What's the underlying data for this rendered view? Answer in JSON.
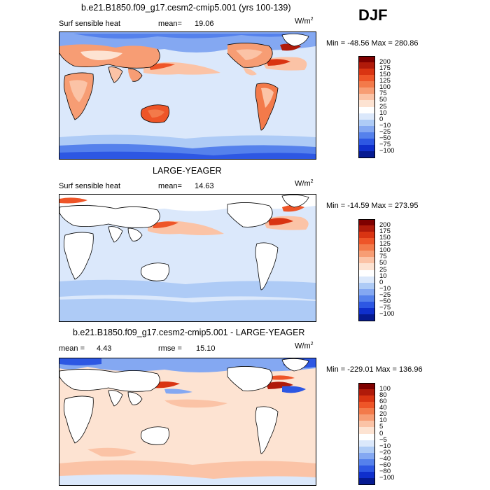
{
  "season": "DJF",
  "panels": [
    {
      "title": "b.e21.B1850.f09_g17.cesm2-cmip5.001 (yrs 100-139)",
      "variable": "Surf sensible heat",
      "stat1_label": "mean=",
      "stat1_value": "19.06",
      "stat2_label": "",
      "stat2_value": "",
      "unit_base": "W/m",
      "unit_exp": "2",
      "minmax": "Min = -48.56 Max = 280.86",
      "colorbar": {
        "labels": [
          "200",
          "175",
          "150",
          "125",
          "100",
          "75",
          "50",
          "25",
          "10",
          "0",
          "-10",
          "-25",
          "-50",
          "-75",
          "-100"
        ],
        "colors": [
          "#7f0000",
          "#b01a0a",
          "#d93412",
          "#ee5528",
          "#f37a4a",
          "#f79d74",
          "#fbc3a6",
          "#fde3d2",
          "#ffffff",
          "#dbe8fb",
          "#aecbf6",
          "#84a8f2",
          "#5581ec",
          "#2d57e3",
          "#0f2fcc",
          "#061a91"
        ]
      }
    },
    {
      "title": "LARGE-YEAGER",
      "variable": "Surf sensible heat",
      "stat1_label": "mean=",
      "stat1_value": "14.63",
      "stat2_label": "",
      "stat2_value": "",
      "unit_base": "W/m",
      "unit_exp": "2",
      "minmax": "Min = -14.59 Max = 273.95",
      "colorbar": {
        "labels": [
          "200",
          "175",
          "150",
          "125",
          "100",
          "75",
          "50",
          "25",
          "10",
          "0",
          "-10",
          "-25",
          "-50",
          "-75",
          "-100"
        ],
        "colors": [
          "#7f0000",
          "#b01a0a",
          "#d93412",
          "#ee5528",
          "#f37a4a",
          "#f79d74",
          "#fbc3a6",
          "#fde3d2",
          "#ffffff",
          "#dbe8fb",
          "#aecbf6",
          "#84a8f2",
          "#5581ec",
          "#2d57e3",
          "#0f2fcc",
          "#061a91"
        ]
      }
    },
    {
      "title": "b.e21.B1850.f09_g17.cesm2-cmip5.001 - LARGE-YEAGER",
      "variable": "",
      "stat1_label": "mean =",
      "stat1_value": "4.43",
      "stat2_label": "rmse =",
      "stat2_value": "15.10",
      "unit_base": "W/m",
      "unit_exp": "2",
      "minmax": "Min = -229.01 Max = 136.96",
      "colorbar": {
        "labels": [
          "100",
          "80",
          "60",
          "40",
          "20",
          "10",
          "5",
          "0",
          "-5",
          "-10",
          "-20",
          "-40",
          "-60",
          "-80",
          "-100"
        ],
        "colors": [
          "#7f0000",
          "#b01a0a",
          "#d93412",
          "#ee5528",
          "#f37a4a",
          "#f79d74",
          "#fbc3a6",
          "#fde3d2",
          "#ffffff",
          "#dbe8fb",
          "#aecbf6",
          "#84a8f2",
          "#5581ec",
          "#2d57e3",
          "#0f2fcc",
          "#061a91"
        ]
      }
    }
  ],
  "palette": {
    "ocean_base": "#dbe8fb",
    "ocean_cold": "#aecbf6",
    "ocean_colder": "#84a8f2",
    "strong_blue": "#2d57e3",
    "warm_light": "#fde3d2",
    "warm_mid": "#f79d74",
    "warm_strong": "#ee5528",
    "hot": "#b01a0a",
    "land_blank": "#ffffff",
    "coast": "#000000"
  }
}
